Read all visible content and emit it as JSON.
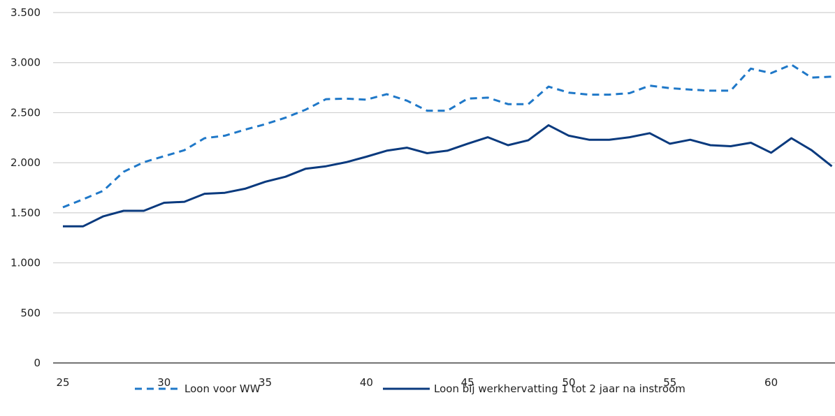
{
  "chart_data": {
    "type": "line",
    "title": "",
    "xlabel": "",
    "ylabel": "",
    "xlim": [
      25,
      63
    ],
    "ylim": [
      0,
      3500
    ],
    "x_ticks": [
      25,
      30,
      35,
      40,
      45,
      50,
      55,
      60
    ],
    "x_tick_labels": [
      "25",
      "30",
      "35",
      "40",
      "45",
      "50",
      "55",
      "60"
    ],
    "y_ticks": [
      0,
      500,
      1000,
      1500,
      2000,
      2500,
      3000,
      3500
    ],
    "y_tick_labels": [
      "0",
      "500",
      "1.000",
      "1.500",
      "2.000",
      "2.500",
      "3.000",
      "3.500"
    ],
    "grid": "horizontal",
    "legend_position": "bottom",
    "x": [
      25,
      26,
      27,
      28,
      29,
      30,
      31,
      32,
      33,
      34,
      35,
      36,
      37,
      38,
      39,
      40,
      41,
      42,
      43,
      44,
      45,
      46,
      47,
      48,
      49,
      50,
      51,
      52,
      53,
      54,
      55,
      56,
      57,
      58,
      59,
      60,
      61,
      62,
      63
    ],
    "series": [
      {
        "name": "Loon voor WW",
        "style": "dashed",
        "color": "#1f78c8",
        "values": [
          1555,
          1635,
          1720,
          1910,
          2005,
          2065,
          2125,
          2245,
          2270,
          2330,
          2385,
          2450,
          2530,
          2635,
          2640,
          2630,
          2685,
          2620,
          2520,
          2520,
          2640,
          2650,
          2585,
          2585,
          2760,
          2700,
          2680,
          2680,
          2695,
          2770,
          2745,
          2730,
          2720,
          2720,
          2940,
          2895,
          2980,
          2850,
          2860
        ]
      },
      {
        "name": "Loon bij werkhervatting 1 tot 2 jaar na instroom",
        "style": "solid",
        "color": "#0a3a7e",
        "values": [
          1365,
          1365,
          1465,
          1520,
          1520,
          1600,
          1610,
          1690,
          1700,
          1740,
          1810,
          1860,
          1940,
          1965,
          2005,
          2060,
          2120,
          2150,
          2095,
          2120,
          2190,
          2255,
          2175,
          2225,
          2375,
          2270,
          2230,
          2230,
          2255,
          2295,
          2190,
          2230,
          2175,
          2165,
          2200,
          2100,
          2245,
          2125,
          1965
        ]
      }
    ]
  }
}
